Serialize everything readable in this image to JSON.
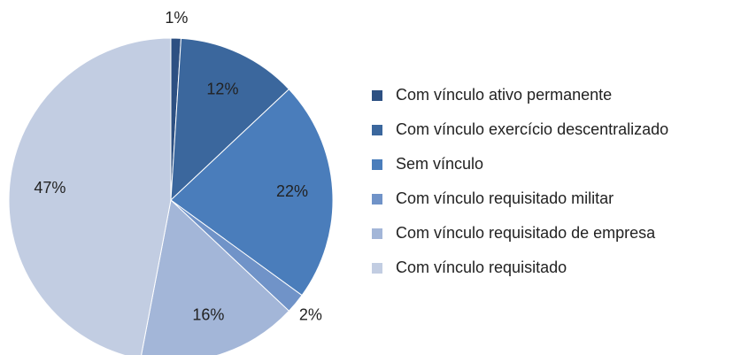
{
  "chart_data": {
    "type": "pie",
    "categories": [
      "Com vínculo ativo permanente",
      "Com vínculo exercício descentralizado",
      "Sem vínculo",
      "Com vínculo requisitado militar",
      "Com vínculo requisitado de empresa",
      "Com vínculo requisitado"
    ],
    "values": [
      1,
      12,
      22,
      2,
      16,
      47
    ],
    "value_labels": [
      "1%",
      "12%",
      "22%",
      "2%",
      "16%",
      "47%"
    ],
    "colors": [
      "#2d5082",
      "#3b679d",
      "#4a7dbb",
      "#7093c8",
      "#a3b6d8",
      "#c2cde2"
    ],
    "legend": "right"
  }
}
